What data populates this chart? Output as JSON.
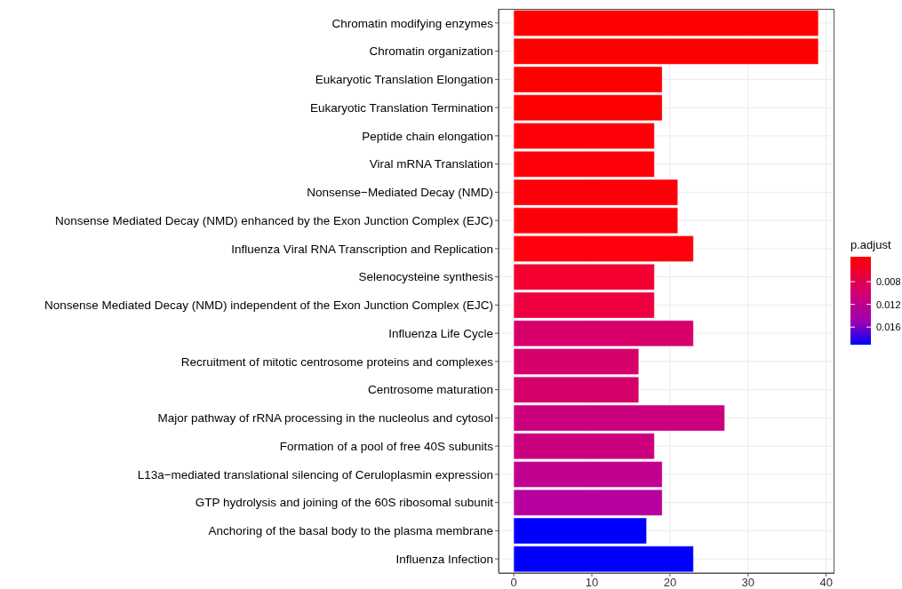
{
  "chart_data": {
    "type": "bar",
    "orientation": "horizontal",
    "categories": [
      "Chromatin modifying enzymes",
      "Chromatin organization",
      "Eukaryotic Translation Elongation",
      "Eukaryotic Translation Termination",
      "Peptide chain elongation",
      "Viral mRNA Translation",
      "Nonsense−Mediated Decay (NMD)",
      "Nonsense Mediated Decay (NMD) enhanced by the Exon Junction Complex (EJC)",
      "Influenza Viral RNA Transcription and Replication",
      "Selenocysteine synthesis",
      "Nonsense Mediated Decay (NMD) independent of the Exon Junction Complex (EJC)",
      "Influenza Life Cycle",
      "Recruitment of mitotic centrosome proteins and complexes",
      "Centrosome maturation",
      "Major pathway of rRNA processing in the nucleolus and cytosol",
      "Formation of a pool of free 40S subunits",
      "L13a−mediated translational silencing of Ceruloplasmin expression",
      "GTP hydrolysis and joining of the 60S ribosomal subunit",
      "Anchoring of the basal body to the plasma membrane",
      "Influenza Infection"
    ],
    "values": [
      39,
      39,
      19,
      19,
      18,
      18,
      21,
      21,
      23,
      18,
      18,
      23,
      16,
      16,
      27,
      18,
      19,
      19,
      17,
      23
    ],
    "colors": [
      "#ff0000",
      "#ff0000",
      "#ff0000",
      "#ff0000",
      "#ff0008",
      "#ff0008",
      "#ff000a",
      "#ff000a",
      "#ff000c",
      "#f50032",
      "#ee0040",
      "#d7006a",
      "#d6006b",
      "#d6006b",
      "#cb007f",
      "#cb007f",
      "#c20090",
      "#b8009e",
      "#0000ff",
      "#0000ff"
    ],
    "xlim": [
      -1.95,
      40.95
    ],
    "xticks": [
      0,
      10,
      20,
      30,
      40
    ],
    "grid": true,
    "clabel": "p.adjust",
    "clim": [
      0.0036,
      0.0191
    ],
    "cticks": [
      0.008,
      0.012,
      0.016
    ]
  }
}
